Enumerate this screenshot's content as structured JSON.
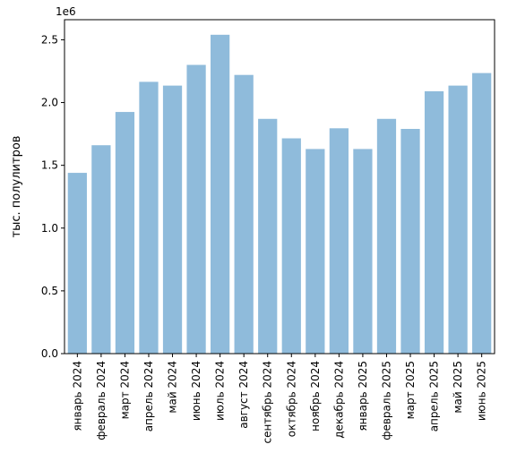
{
  "chart_data": {
    "type": "bar",
    "title": "",
    "xlabel": "",
    "ylabel": "тыс. полулитров",
    "offset_label": "1e6",
    "categories": [
      "январь 2024",
      "февраль 2024",
      "март 2024",
      "апрель 2024",
      "май 2024",
      "июнь 2024",
      "июль 2024",
      "август 2024",
      "сентябрь 2024",
      "октябрь 2024",
      "ноябрь 2024",
      "декабрь 2024",
      "январь 2025",
      "февраль 2025",
      "март 2025",
      "апрель 2025",
      "май 2025",
      "июнь 2025"
    ],
    "values": [
      1440000,
      1660000,
      1925000,
      2165000,
      2135000,
      2300000,
      2540000,
      2220000,
      1870000,
      1715000,
      1630000,
      1795000,
      1630000,
      1870000,
      1790000,
      2090000,
      2135000,
      2235000
    ],
    "ylim": [
      0,
      2660000
    ],
    "yticks": [
      0,
      500000,
      1000000,
      1500000,
      2000000,
      2500000
    ],
    "ytick_labels": [
      "0.0",
      "0.5",
      "1.0",
      "1.5",
      "2.0",
      "2.5"
    ],
    "bar_color": "#8fbbdb",
    "grid": false,
    "legend": "none"
  }
}
